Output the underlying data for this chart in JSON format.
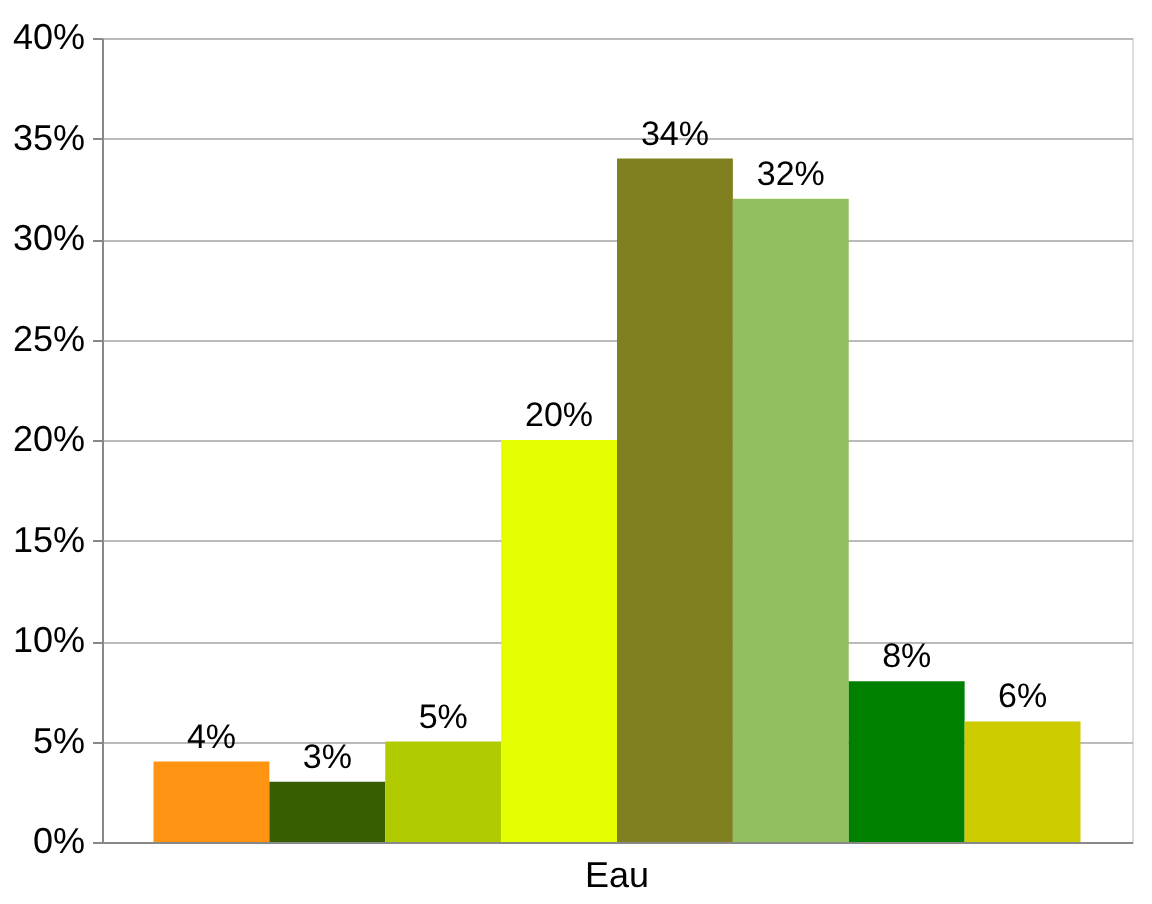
{
  "chart_data": {
    "type": "bar",
    "categories": [
      "Eau"
    ],
    "series": [
      {
        "color": "#ff9412",
        "values": [
          4
        ],
        "value_labels": [
          "4%"
        ]
      },
      {
        "color": "#375e00",
        "values": [
          3
        ],
        "value_labels": [
          "3%"
        ]
      },
      {
        "color": "#b0cc00",
        "values": [
          5
        ],
        "value_labels": [
          "5%"
        ]
      },
      {
        "color": "#e5ff00",
        "values": [
          20
        ],
        "value_labels": [
          "20%"
        ]
      },
      {
        "color": "#808020",
        "values": [
          34
        ],
        "value_labels": [
          "34%"
        ]
      },
      {
        "color": "#92bf5f",
        "values": [
          32
        ],
        "value_labels": [
          "32%"
        ]
      },
      {
        "color": "#008000",
        "values": [
          8
        ],
        "value_labels": [
          "8%"
        ]
      },
      {
        "color": "#cccc00",
        "values": [
          6
        ],
        "value_labels": [
          "6%"
        ]
      }
    ],
    "ylim": [
      0,
      40
    ],
    "yticks": [
      {
        "value": 0,
        "label": "0%"
      },
      {
        "value": 5,
        "label": "5%"
      },
      {
        "value": 10,
        "label": "10%"
      },
      {
        "value": 15,
        "label": "15%"
      },
      {
        "value": 20,
        "label": "20%"
      },
      {
        "value": 25,
        "label": "25%"
      },
      {
        "value": 30,
        "label": "30%"
      },
      {
        "value": 35,
        "label": "35%"
      },
      {
        "value": 40,
        "label": "40%"
      }
    ],
    "grid": "y",
    "legend": false
  }
}
